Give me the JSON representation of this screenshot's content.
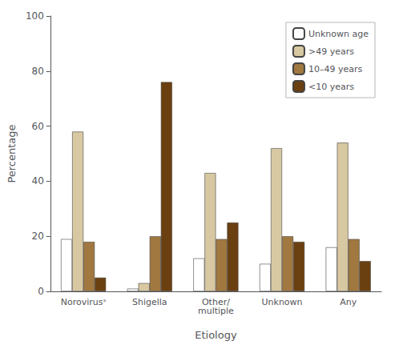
{
  "chart_data": {
    "type": "bar",
    "categories": [
      "Norovirusˢ",
      "Shigella",
      "Other/\nmultiple",
      "Unknown",
      "Any"
    ],
    "series": [
      {
        "name": "Unknown age",
        "color": "#FFFFFF",
        "values": [
          19,
          1,
          12,
          10,
          16
        ]
      },
      {
        "name": ">49 years",
        "color": "#D8C8A2",
        "values": [
          58,
          3,
          43,
          52,
          54
        ]
      },
      {
        "name": "10–49 years",
        "color": "#A07840",
        "values": [
          18,
          20,
          19,
          20,
          19
        ]
      },
      {
        "name": "<10 years",
        "color": "#6B4010",
        "values": [
          5,
          76,
          25,
          18,
          11
        ]
      }
    ],
    "xlabel": "Etiology",
    "ylabel": "Percentage",
    "ylim": [
      0,
      100
    ],
    "yticks": [
      0,
      20,
      40,
      60,
      80,
      100
    ],
    "grid": false,
    "legend": "upper right"
  }
}
